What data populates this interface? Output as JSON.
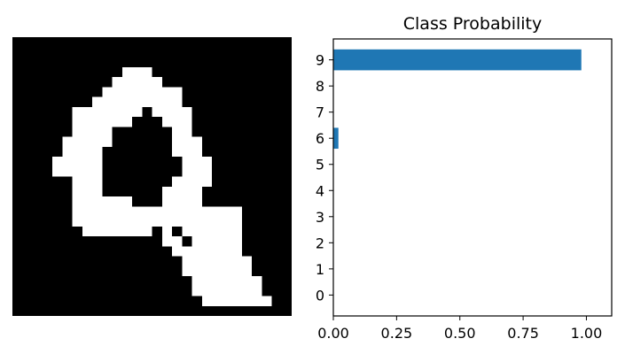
{
  "image": {
    "caption": "",
    "rows": [
      "............................",
      "............................",
      "............................",
      "...........###..............",
      "..........#####.............",
      ".........########...........",
      "........#########...........",
      "......#######.####..........",
      "......######...###..........",
      "......####......##..........",
      ".....#####......###.........",
      ".....####.......###.........",
      "....#####........###........",
      "....#####........###........",
      "......###.......####........",
      "......###......####.........",
      "......######...####.........",
      "......#################.....",
      "......#################.....",
      ".......#######.#.######.....",
      "...............##.#####.....",
      "................#######.....",
      ".................#######....",
      ".................#######....",
      "..................#######...",
      "..................#######...",
      "...................#######..",
      "............................"
    ]
  },
  "chart_data": {
    "type": "bar",
    "orientation": "horizontal",
    "title": "Class Probability",
    "xlabel": "",
    "ylabel": "",
    "categories": [
      "0",
      "1",
      "2",
      "3",
      "4",
      "5",
      "6",
      "7",
      "8",
      "9"
    ],
    "values": [
      0.0,
      0.0,
      0.0,
      0.0,
      0.0,
      0.0,
      0.02,
      0.0,
      0.0,
      0.98
    ],
    "xlim": [
      0,
      1.1
    ],
    "xticks": [
      0.0,
      0.25,
      0.5,
      0.75,
      1.0
    ],
    "xtick_labels": [
      "0.00",
      "0.25",
      "0.50",
      "0.75",
      "1.00"
    ],
    "grid": false,
    "bar_color": "#1f77b4"
  }
}
